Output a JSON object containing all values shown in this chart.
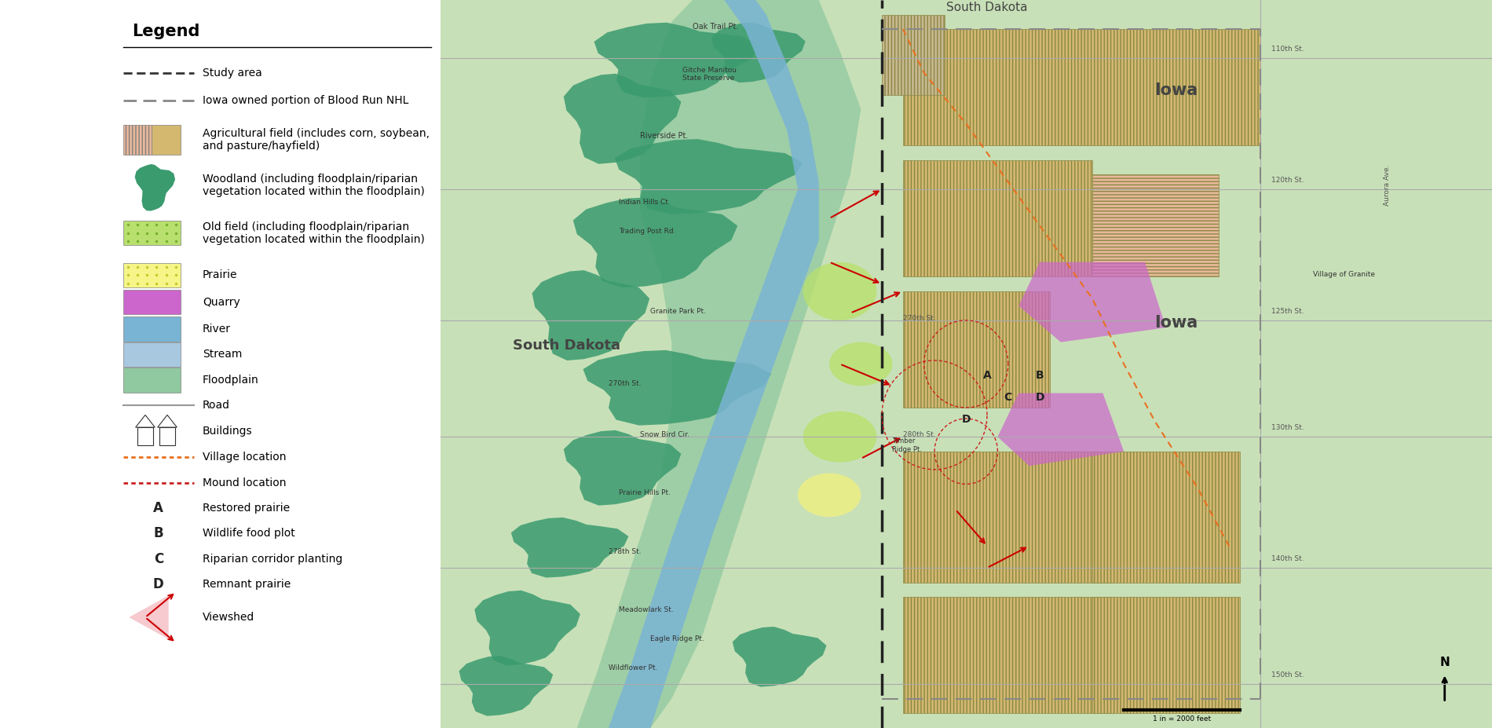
{
  "legend_title": "Legend",
  "bg_color": "#ffffff",
  "legend_items": [
    {
      "type": "dashed_line",
      "color": "#333333",
      "dash": [
        8,
        4
      ],
      "lw": 2.0,
      "label": "Study area"
    },
    {
      "type": "dashed_line",
      "color": "#888888",
      "dash": [
        12,
        6
      ],
      "lw": 2.0,
      "label": "Iowa owned portion of Blood Run NHL"
    },
    {
      "type": "hatch_rect",
      "colors": [
        "#e8b89a",
        "#d4b870"
      ],
      "hatches": [
        "||||",
        "===="
      ],
      "label": "Agricultural field (includes corn, soybean,\nand pasture/hayfield)"
    },
    {
      "type": "blob",
      "color": "#3a9b6e",
      "label": "Woodland (including floodplain/riparian\nvegetation located within the floodplain)"
    },
    {
      "type": "dotted_rect",
      "color": "#b8e06e",
      "dot_color": "#7ab030",
      "label": "Old field (including floodplain/riparian\nvegetation located within the floodplain)"
    },
    {
      "type": "dotted_rect",
      "color": "#f5f588",
      "dot_color": "#c8c830",
      "label": "Prairie"
    },
    {
      "type": "solid_rect",
      "color": "#cc66cc",
      "label": "Quarry"
    },
    {
      "type": "solid_rect",
      "color": "#7ab4d4",
      "label": "River"
    },
    {
      "type": "solid_rect_gradient",
      "color": "#a8c8e0",
      "color2": "#c8e0f0",
      "label": "Stream"
    },
    {
      "type": "solid_rect",
      "color": "#90c9a0",
      "label": "Floodplain"
    },
    {
      "type": "line",
      "color": "#999999",
      "lw": 1.5,
      "label": "Road"
    },
    {
      "type": "text_symbol",
      "symbol": "buildings",
      "color": "#333333",
      "label": "Buildings"
    },
    {
      "type": "dashed_line",
      "color": "#e87020",
      "dash": [
        4,
        3
      ],
      "lw": 2.0,
      "label": "Village location"
    },
    {
      "type": "dashed_line",
      "color": "#cc2020",
      "dash": [
        4,
        3
      ],
      "lw": 2.0,
      "label": "Mound location"
    },
    {
      "type": "bold_letter",
      "letter": "A",
      "label": "Restored prairie"
    },
    {
      "type": "bold_letter",
      "letter": "B",
      "label": "Wildlife food plot"
    },
    {
      "type": "bold_letter",
      "letter": "C",
      "label": "Riparian corridor planting"
    },
    {
      "type": "bold_letter",
      "letter": "D",
      "label": "Remnant prairie"
    },
    {
      "type": "viewshed",
      "label": "Viewshed"
    }
  ],
  "label_fontsize": 10,
  "map_bg": "#c8e0b8",
  "woodland_color": "#3a9b6e",
  "floodplain_color": "#90c9a0",
  "river_color": "#7ab4d4",
  "agr_corn_color": "#d4b870",
  "agr_pasture_color": "#e8b89a",
  "quarry_color": "#cc66cc",
  "old_field_color": "#b8e06e",
  "prairie_color": "#f0f080",
  "road_color": "#aaaaaa",
  "border_color": "#222222",
  "iowa_border_color": "#888888",
  "orange_dash_color": "#e87020",
  "red_arrow_color": "#cc0000",
  "state_label_color": "#444444",
  "place_label_color": "#333333"
}
